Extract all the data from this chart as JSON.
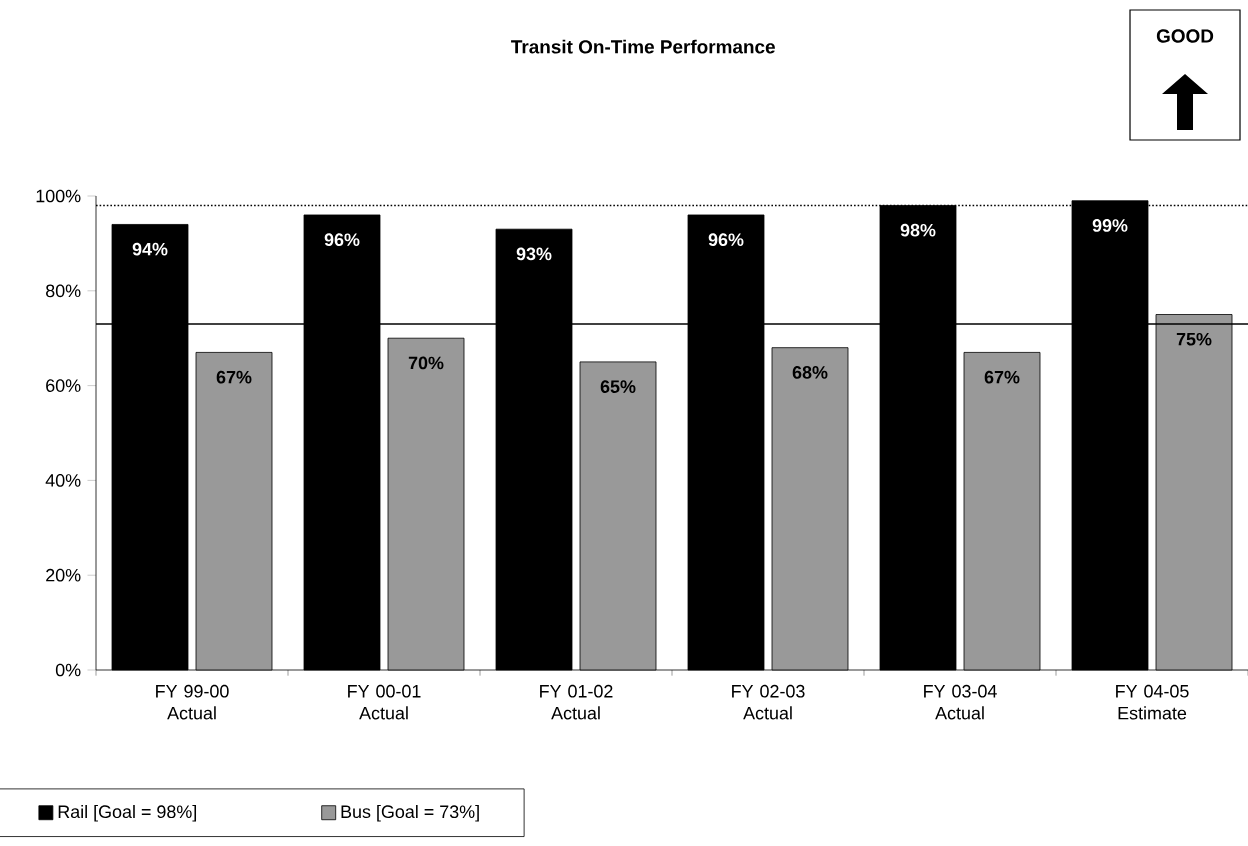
{
  "chart_data": {
    "type": "bar",
    "title": "Transit On-Time Performance",
    "categories": [
      "FY 99-00 Actual",
      "FY 00-01 Actual",
      "FY 01-02 Actual",
      "FY 02-03 Actual",
      "FY 03-04 Actual",
      "FY 04-05 Estimate"
    ],
    "series": [
      {
        "name": "Rail [Goal = 98%]",
        "color": "#000000",
        "values": [
          94,
          96,
          93,
          96,
          98,
          99
        ],
        "value_labels": [
          "94%",
          "96%",
          "93%",
          "96%",
          "98%",
          "99%"
        ]
      },
      {
        "name": "Bus [Goal = 73%]",
        "color": "#999999",
        "values": [
          67,
          70,
          65,
          68,
          67,
          75
        ],
        "value_labels": [
          "67%",
          "70%",
          "65%",
          "68%",
          "67%",
          "75%"
        ]
      }
    ],
    "ylim": [
      0,
      100
    ],
    "yticks": [
      {
        "value": 0,
        "label": "0%"
      },
      {
        "value": 20,
        "label": "20%"
      },
      {
        "value": 40,
        "label": "40%"
      },
      {
        "value": 60,
        "label": "60%"
      },
      {
        "value": 80,
        "label": "80%"
      },
      {
        "value": 100,
        "label": "100%"
      }
    ],
    "ref_lines": [
      {
        "axis": "y",
        "value": 98,
        "line_style": "dotted"
      },
      {
        "axis": "y",
        "value": 73,
        "line_style": "solid"
      }
    ],
    "annotations": [
      "GOOD"
    ],
    "legend": "bottom left",
    "grid": false
  }
}
